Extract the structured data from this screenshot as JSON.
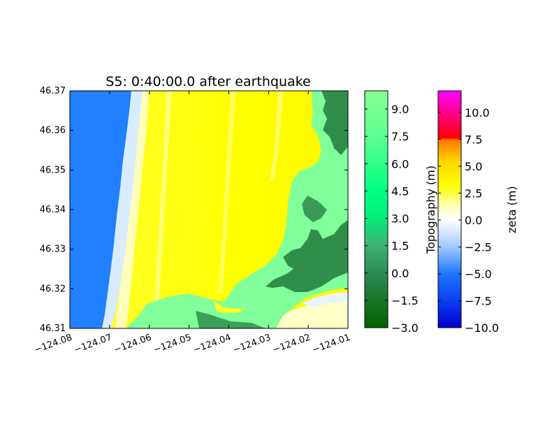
{
  "chart_data": {
    "type": "heatmap",
    "title": "S5: 0:40:00.0 after earthquake",
    "xlabel": "",
    "ylabel": "",
    "xlim": [
      -124.08,
      -124.01
    ],
    "ylim": [
      46.31,
      46.37
    ],
    "x_ticks": [
      -124.08,
      -124.07,
      -124.06,
      -124.05,
      -124.04,
      -124.03,
      -124.02,
      -124.01
    ],
    "x_tick_labels": [
      "−124.08",
      "−124.07",
      "−124.06",
      "−124.05",
      "−124.04",
      "−124.03",
      "−124.02",
      "−124.01"
    ],
    "y_ticks": [
      46.31,
      46.32,
      46.33,
      46.34,
      46.35,
      46.36,
      46.37
    ],
    "y_tick_labels": [
      "46.31",
      "46.32",
      "46.33",
      "46.34",
      "46.35",
      "46.36",
      "46.37"
    ],
    "colorbars": [
      {
        "label": "Topography (m)",
        "range": [
          -3.0,
          10.0
        ],
        "ticks": [
          -3.0,
          -1.5,
          0.0,
          1.5,
          3.0,
          4.5,
          6.0,
          7.5,
          9.0
        ],
        "tick_labels": [
          "−3.0",
          "−1.5",
          "0.0",
          "1.5",
          "3.0",
          "4.5",
          "6.0",
          "7.5",
          "9.0"
        ],
        "colors": [
          "#006400",
          "#2e8b57",
          "#3cb371",
          "#00ff7f",
          "#7fffa0",
          "#88ff88"
        ]
      },
      {
        "label": "zeta (m)",
        "range": [
          -10.0,
          12.0
        ],
        "ticks": [
          -10.0,
          -7.5,
          -5.0,
          -2.5,
          0.0,
          2.5,
          5.0,
          7.5,
          10.0
        ],
        "tick_labels": [
          "−10.0",
          "−7.5",
          "−5.0",
          "−2.5",
          "0.0",
          "2.5",
          "5.0",
          "7.5",
          "10.0"
        ],
        "colors": [
          "#0000cd",
          "#1e90ff",
          "#ffffff",
          "#ffff00",
          "#ff8c00",
          "#ff0000",
          "#ff00ff"
        ]
      }
    ]
  }
}
